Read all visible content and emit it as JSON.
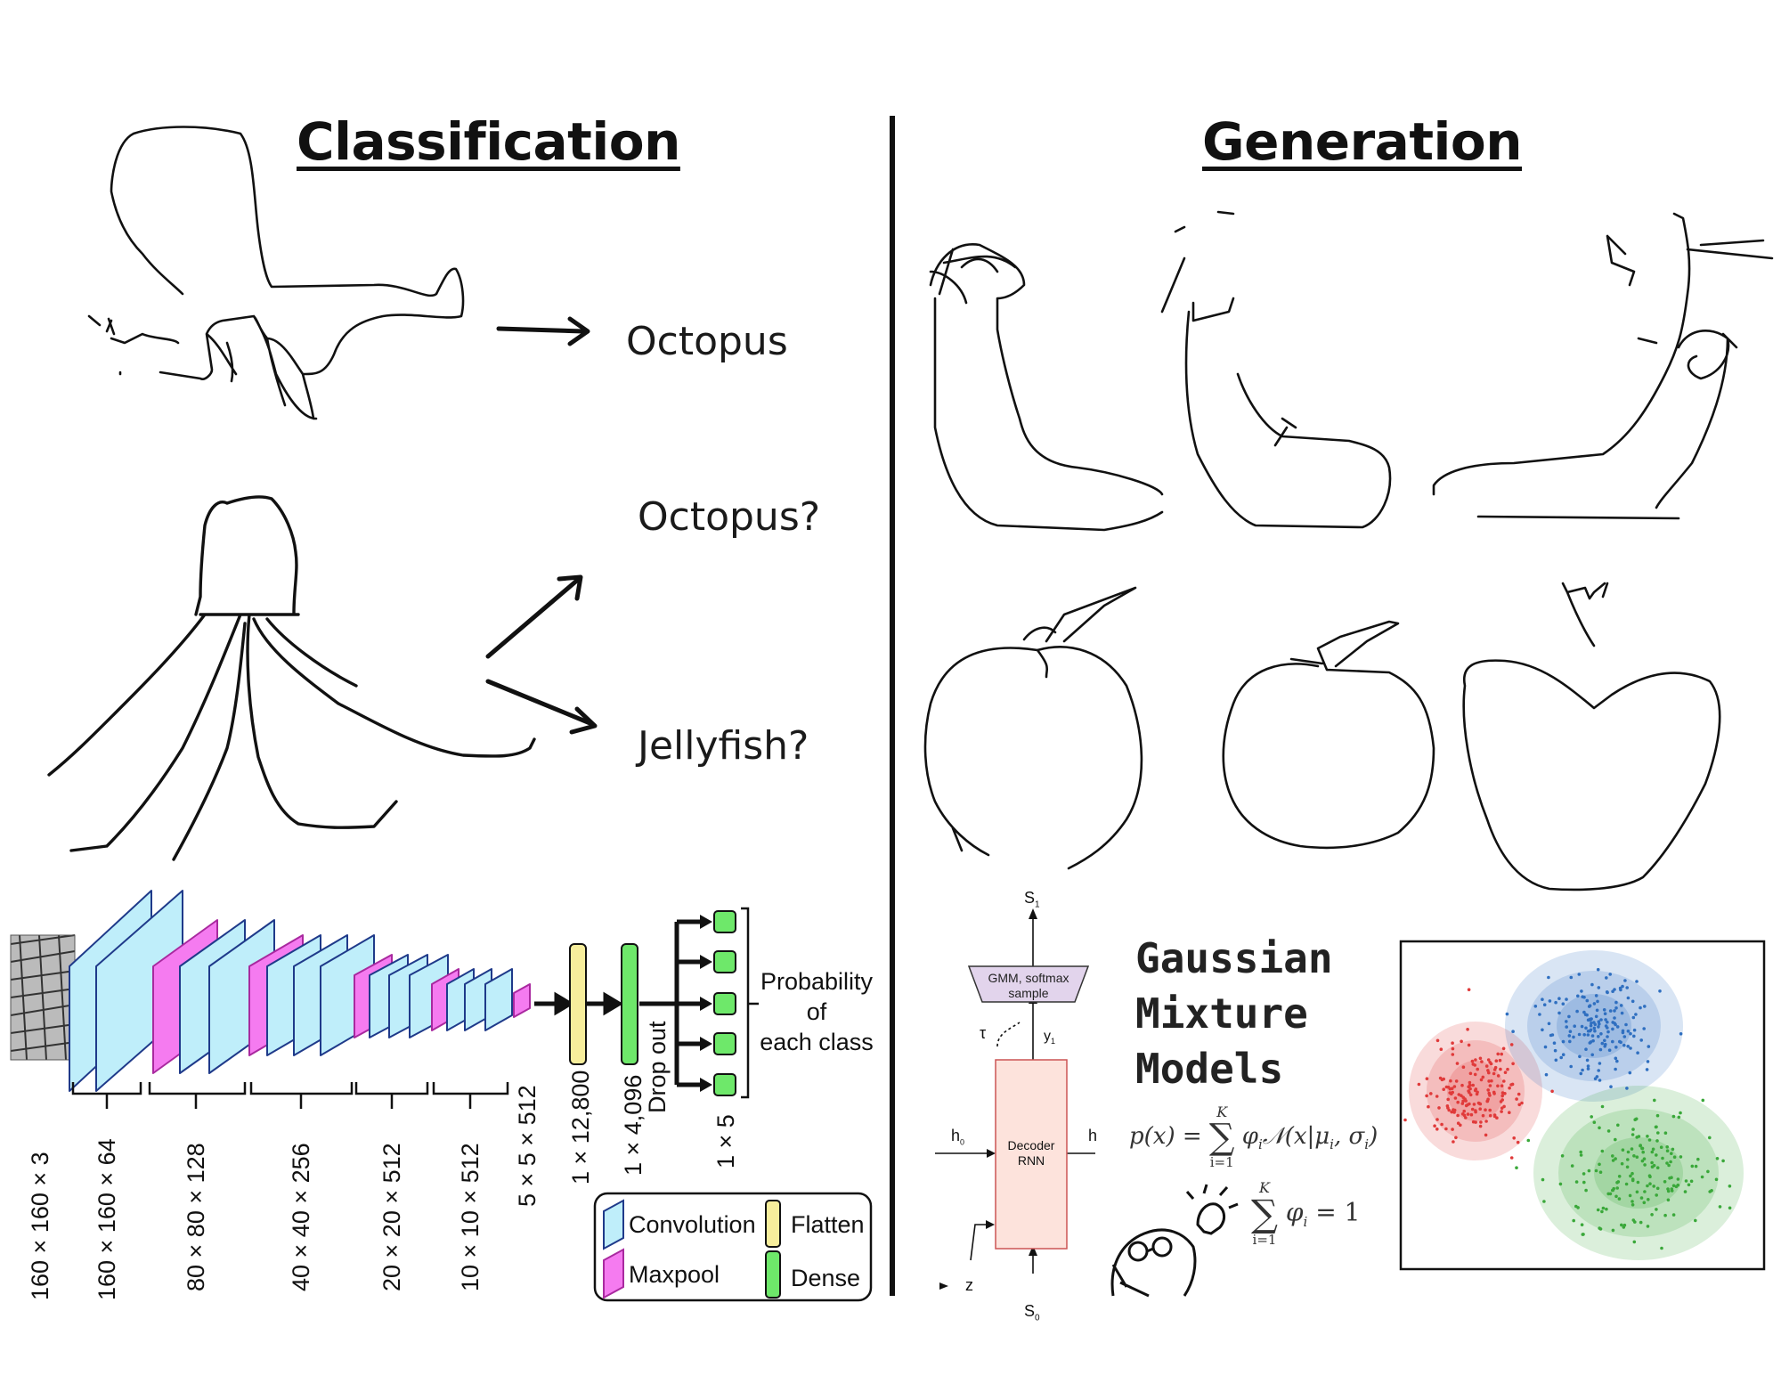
{
  "headings": {
    "classification": "Classification",
    "generation": "Generation"
  },
  "predictions": {
    "first": "Octopus",
    "second": "Octopus?",
    "third": "Jellyfish?"
  },
  "cnn": {
    "layer_dims": [
      "160 × 160 × 3",
      "160 × 160 × 64",
      "80 × 80 × 128",
      "40 × 40 × 256",
      "20 × 20 × 512",
      "10 × 10 × 512",
      "5 × 5 × 512"
    ],
    "flatten_dim": "1 × 12,800",
    "dense_dim": "1 × 4,096",
    "dropout": "Drop out",
    "output_dim": "1 × 5",
    "probability": [
      "Probability",
      "of",
      "each class"
    ],
    "legend": {
      "convolution": "Convolution",
      "flatten": "Flatten",
      "maxpool": "Maxpool",
      "dense": "Dense"
    },
    "colors": {
      "conv": "#bfeefa",
      "conv_edge": "#1f3a8a",
      "maxpool": "#f57bf0",
      "flatten": "#f7ee9c",
      "dense": "#6ee86a"
    }
  },
  "rnn": {
    "output": "S",
    "output_sub": "1",
    "gmm_box": [
      "GMM, softmax",
      "sample"
    ],
    "tau": "τ",
    "y": "y",
    "y_sub": "1",
    "decoder": [
      "Decoder",
      "RNN"
    ],
    "h0": "h",
    "h0_sub": "0",
    "h_right": "h",
    "z": "z",
    "input": "S",
    "input_sub": "0"
  },
  "gmm": {
    "title_lines": [
      "Gaussian",
      "Mixture",
      "Models"
    ],
    "formula_lhs": "p(x) =",
    "formula_sum_top": "K",
    "formula_sum_bottom": "i=1",
    "formula_rhs": "φ",
    "formula_rhs_rest": "i",
    "formula_normal": "𝒩(x|μ",
    "formula_normal_i": "i",
    "formula_sigma": ", σ",
    "formula_sigma_i": "i",
    "formula_close": ")",
    "constraint_phi": "φ",
    "constraint_i": "i",
    "constraint_eq": "= 1",
    "clusters": [
      {
        "name": "red",
        "color": "#e03a3a"
      },
      {
        "name": "blue",
        "color": "#2f6fc0"
      },
      {
        "name": "green",
        "color": "#3aa83a"
      }
    ]
  }
}
